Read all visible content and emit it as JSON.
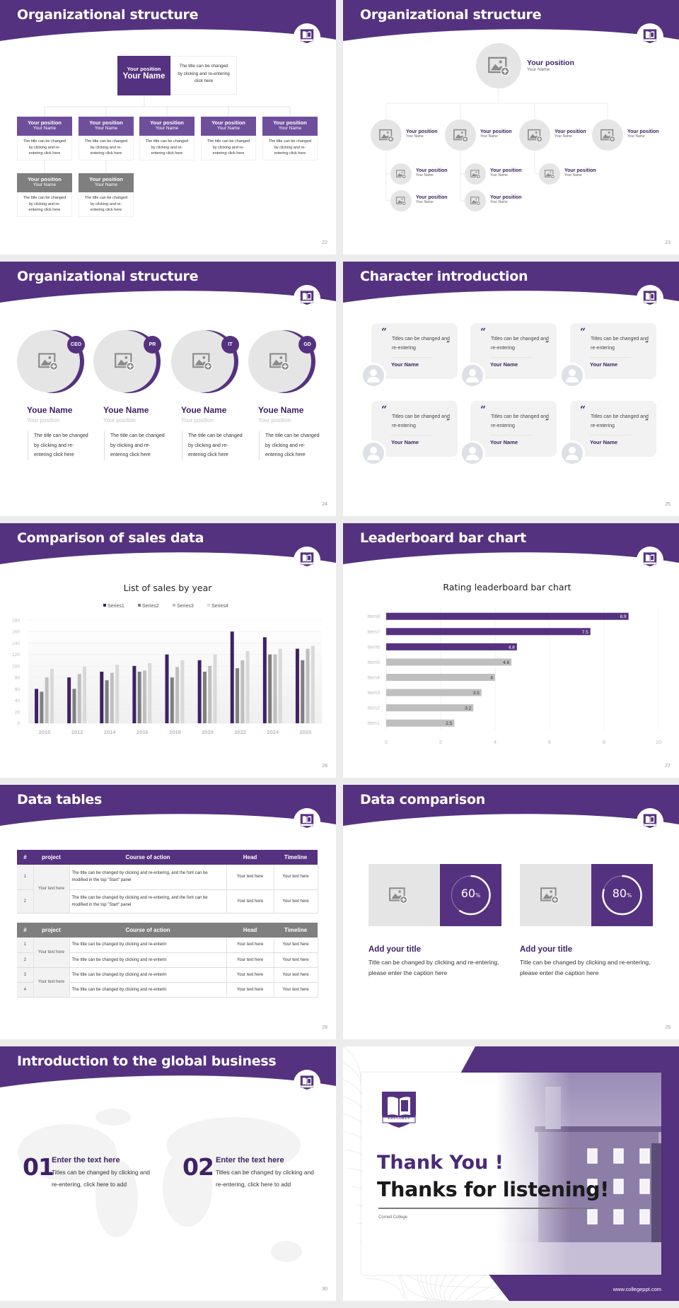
{
  "brand": {
    "primary": "#553280",
    "dark": "#3f2166",
    "mid": "#6f4f9c",
    "gray": "#7f7f7f",
    "light": "#e6e5e6"
  },
  "slides": {
    "org_boxes": {
      "title": "Organizational structure",
      "page": "22",
      "top": {
        "position": "Your position",
        "name": "Your Name",
        "desc": "The title can be changed by clicking and re-entering click here"
      },
      "children": [
        {
          "position": "Your position",
          "name": "Your Name",
          "desc": "The title can be changed by clicking and re-entering click here"
        },
        {
          "position": "Your position",
          "name": "Your Name",
          "desc": "The title can be changed by clicking and re-entering click here"
        },
        {
          "position": "Your position",
          "name": "Your Name",
          "desc": "The title can be changed by clicking and re-entering click here"
        },
        {
          "position": "Your position",
          "name": "Your Name",
          "desc": "The title can be changed by clicking and re-entering click here"
        },
        {
          "position": "Your position",
          "name": "Your Name",
          "desc": "The title can be changed by clicking and re-entering click here"
        }
      ],
      "sub": [
        {
          "position": "Your position",
          "name": "Your Name",
          "desc": "The title can be changed by clicking and re-entering click here"
        },
        {
          "position": "Your position",
          "name": "Your Name",
          "desc": "The title can be changed by clicking and re-entering click here"
        }
      ]
    },
    "org_circles": {
      "title": "Organizational structure",
      "page": "23",
      "top": {
        "position": "Your position",
        "name": "Your Name"
      },
      "level2": [
        {
          "position": "Your position",
          "name": "Your Name"
        },
        {
          "position": "Your position",
          "name": "Your Name"
        },
        {
          "position": "Your position",
          "name": "Your Name"
        },
        {
          "position": "Your position",
          "name": "Your Name"
        }
      ],
      "level3": [
        {
          "position": "Your position",
          "name": "Your Name"
        },
        {
          "position": "Your position",
          "name": "Your Name"
        },
        {
          "position": "Your position",
          "name": "Your Name"
        },
        {
          "position": "Your position",
          "name": "Your Name"
        },
        {
          "position": "Your position",
          "name": "Your Name"
        }
      ]
    },
    "team": {
      "title": "Organizational structure",
      "page": "24",
      "members": [
        {
          "badge": "CEO",
          "name": "Youe Name",
          "position": "Your position",
          "desc": "The title can be changed by clicking and re-entering click here"
        },
        {
          "badge": "PR",
          "name": "Youe Name",
          "position": "Your position",
          "desc": "The title can be changed by clicking and re-entering click here"
        },
        {
          "badge": "IT",
          "name": "Youe Name",
          "position": "Your position",
          "desc": "The title can be changed by clicking and re-entering click here"
        },
        {
          "badge": "GD",
          "name": "Youe Name",
          "position": "Your position",
          "desc": "The title can be changed by clicking and re-entering click here"
        }
      ]
    },
    "characters": {
      "title": "Character introduction",
      "page": "25",
      "cards": [
        {
          "quote": "Titles can be changed and re-entering",
          "name": "Your Name"
        },
        {
          "quote": "Titles can be changed and re-entering",
          "name": "Your Name"
        },
        {
          "quote": "Titles can be changed and re-entering",
          "name": "Your Name"
        },
        {
          "quote": "Titles can be changed and re-entering",
          "name": "Your Name"
        },
        {
          "quote": "Titles can be changed and re-entering",
          "name": "Your Name"
        },
        {
          "quote": "Titles can be changed and re-entering",
          "name": "Your Name"
        }
      ]
    },
    "sales": {
      "title": "Comparison of sales data",
      "page": "26"
    },
    "leaderboard": {
      "title": "Leaderboard bar chart",
      "page": "27"
    },
    "tables": {
      "title": "Data tables",
      "page": "28",
      "headers": [
        "#",
        "project",
        "Course of action",
        "Head",
        "Timeline"
      ],
      "table1": {
        "project": "Your text here",
        "rows": [
          {
            "num": "1",
            "course": "The title can be changed by clicking and re-entering, and the font can be modified in the top \"Start\" panel",
            "head": "Your text here",
            "timeline": "Your text here"
          },
          {
            "num": "2",
            "course": "The title can be changed by clicking and re-entering, and the font can be modified in the top \"Start\" panel",
            "head": "Your text here",
            "timeline": "Your text here"
          }
        ]
      },
      "table2": {
        "projects": [
          "Your text here",
          "Your text here"
        ],
        "rows": [
          {
            "num": "1",
            "course": "The title can be changed by clicking and re-enterin",
            "head": "Your text here",
            "timeline": "Your text here"
          },
          {
            "num": "2",
            "course": "The title can be changed by clicking and re-enterin",
            "head": "Your text here",
            "timeline": "Your text here"
          },
          {
            "num": "3",
            "course": "The title can be changed by clicking and re-enterin",
            "head": "Your text here",
            "timeline": "Your text here"
          },
          {
            "num": "4",
            "course": "The title can be changed by clicking and re-enterin",
            "head": "Your text here",
            "timeline": "Your text here"
          }
        ]
      }
    },
    "comparison": {
      "title": "Data comparison",
      "page": "29",
      "items": [
        {
          "percent": 60,
          "value": "60",
          "unit": "%",
          "heading": "Add your title",
          "text": "Title can be changed by clicking and re-entering, please enter the caption here"
        },
        {
          "percent": 80,
          "value": "80",
          "unit": "%",
          "heading": "Add your title",
          "text": "Title can be changed by clicking and re-entering, please enter the caption here"
        }
      ]
    },
    "global": {
      "title": "Introduction to the global business",
      "page": "30",
      "items": [
        {
          "num": "01",
          "heading": "Enter the text here",
          "text": "Titles can be changed by clicking and re-entering, click here to add"
        },
        {
          "num": "02",
          "heading": "Enter the text here",
          "text": "Titles can be changed by clicking and re-entering, click here to add"
        }
      ]
    },
    "closing": {
      "logo_text": "EDUCIMUS",
      "thank_you": "Thank You !",
      "thanks": "Thanks for listening!",
      "college": "Cornell College",
      "website": "www.collegeppt.com"
    }
  },
  "chart_data": [
    {
      "type": "bar",
      "title": "List of sales by year",
      "categories": [
        "2010",
        "2012",
        "2014",
        "2016",
        "2018",
        "2020",
        "2022",
        "2024",
        "2026"
      ],
      "series": [
        {
          "name": "Series1",
          "color": "#3f2166",
          "values": [
            60,
            80,
            90,
            100,
            120,
            110,
            160,
            150,
            130
          ]
        },
        {
          "name": "Series2",
          "color": "#7f7f7f",
          "values": [
            55,
            60,
            75,
            90,
            80,
            90,
            96,
            120,
            110
          ]
        },
        {
          "name": "Series3",
          "color": "#bfbfbf",
          "values": [
            80,
            86,
            88,
            92,
            98,
            100,
            110,
            120,
            130
          ]
        },
        {
          "name": "Series4",
          "color": "#d9d9d9",
          "values": [
            95,
            99,
            102,
            105,
            110,
            120,
            126,
            130,
            135
          ]
        }
      ],
      "yticks": [
        "0",
        "20",
        "40",
        "60",
        "80",
        "100",
        "120",
        "140",
        "160",
        "180"
      ],
      "ylim": [
        0,
        180
      ],
      "grid": true,
      "legend": "top"
    },
    {
      "type": "bar",
      "orientation": "horizontal",
      "title": "Rating leaderboard bar chart",
      "categories": [
        "Item1",
        "Item2",
        "Item3",
        "Item4",
        "Item5",
        "Item6",
        "Item7",
        "Item8"
      ],
      "values": [
        2.5,
        3.2,
        3.5,
        4,
        4.6,
        4.8,
        7.5,
        8.9
      ],
      "labels": [
        "2.5",
        "3.2",
        "3.5",
        "4",
        "4.6",
        "4.8",
        "7.5",
        "8.9"
      ],
      "colors": [
        "#bfbfbf",
        "#bfbfbf",
        "#bfbfbf",
        "#bfbfbf",
        "#bfbfbf",
        "#553280",
        "#553280",
        "#553280"
      ],
      "xticks": [
        "0",
        "2",
        "4",
        "6",
        "8",
        "10"
      ],
      "xlim": [
        0,
        10
      ],
      "grid": true
    }
  ]
}
